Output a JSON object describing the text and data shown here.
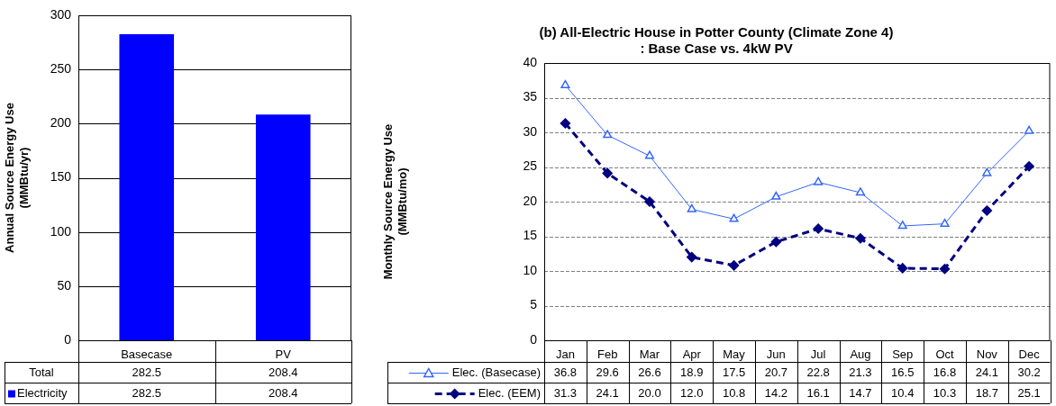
{
  "chart_data": [
    {
      "type": "bar",
      "ylabel": "Annual Source Energy Use\n(MMBtu/yr)",
      "categories": [
        "Basecase",
        "PV"
      ],
      "series": [
        {
          "name": "Electricity",
          "color": "#0000ff",
          "values": [
            282.5,
            208.4
          ],
          "value_labels": [
            "282.5",
            "208.4"
          ]
        }
      ],
      "totals": [
        "282.5",
        "208.4"
      ],
      "annotations": [
        "Total"
      ],
      "ylim": [
        0,
        300
      ],
      "yticks": [
        0,
        50,
        100,
        150,
        200,
        250,
        300
      ],
      "grid": "y",
      "legend": "bottom"
    },
    {
      "type": "line",
      "title": "(b) All-Electric House in Potter County (Climate Zone 4)\n: Base Case vs. 4kW PV",
      "ylabel": "Monthly Source Energy Use\n(MMBtu/mo)",
      "categories": [
        "Jan",
        "Feb",
        "Mar",
        "Apr",
        "May",
        "Jun",
        "Jul",
        "Aug",
        "Sep",
        "Oct",
        "Nov",
        "Dec"
      ],
      "series": [
        {
          "name": "Elec. (Basecase)",
          "color": "#3366ff",
          "marker": "triangle",
          "line_style": "solid",
          "values": [
            36.8,
            29.6,
            26.6,
            18.9,
            17.5,
            20.7,
            22.8,
            21.3,
            16.5,
            16.8,
            24.1,
            30.2
          ],
          "value_labels": [
            "36.8",
            "29.6",
            "26.6",
            "18.9",
            "17.5",
            "20.7",
            "22.8",
            "21.3",
            "16.5",
            "16.8",
            "24.1",
            "30.2"
          ]
        },
        {
          "name": "Elec. (EEM)",
          "color": "#000080",
          "marker": "diamond",
          "line_style": "dashed",
          "values": [
            31.3,
            24.1,
            20.0,
            12.0,
            10.8,
            14.2,
            16.1,
            14.7,
            10.4,
            10.3,
            18.7,
            25.1
          ],
          "value_labels": [
            "31.3",
            "24.1",
            "20.0",
            "12.0",
            "10.8",
            "14.2",
            "16.1",
            "14.7",
            "10.4",
            "10.3",
            "18.7",
            "25.1"
          ]
        }
      ],
      "ylim": [
        0,
        40
      ],
      "yticks": [
        0,
        5,
        10,
        15,
        20,
        25,
        30,
        35,
        40
      ],
      "grid": "y",
      "legend": "bottom"
    }
  ]
}
